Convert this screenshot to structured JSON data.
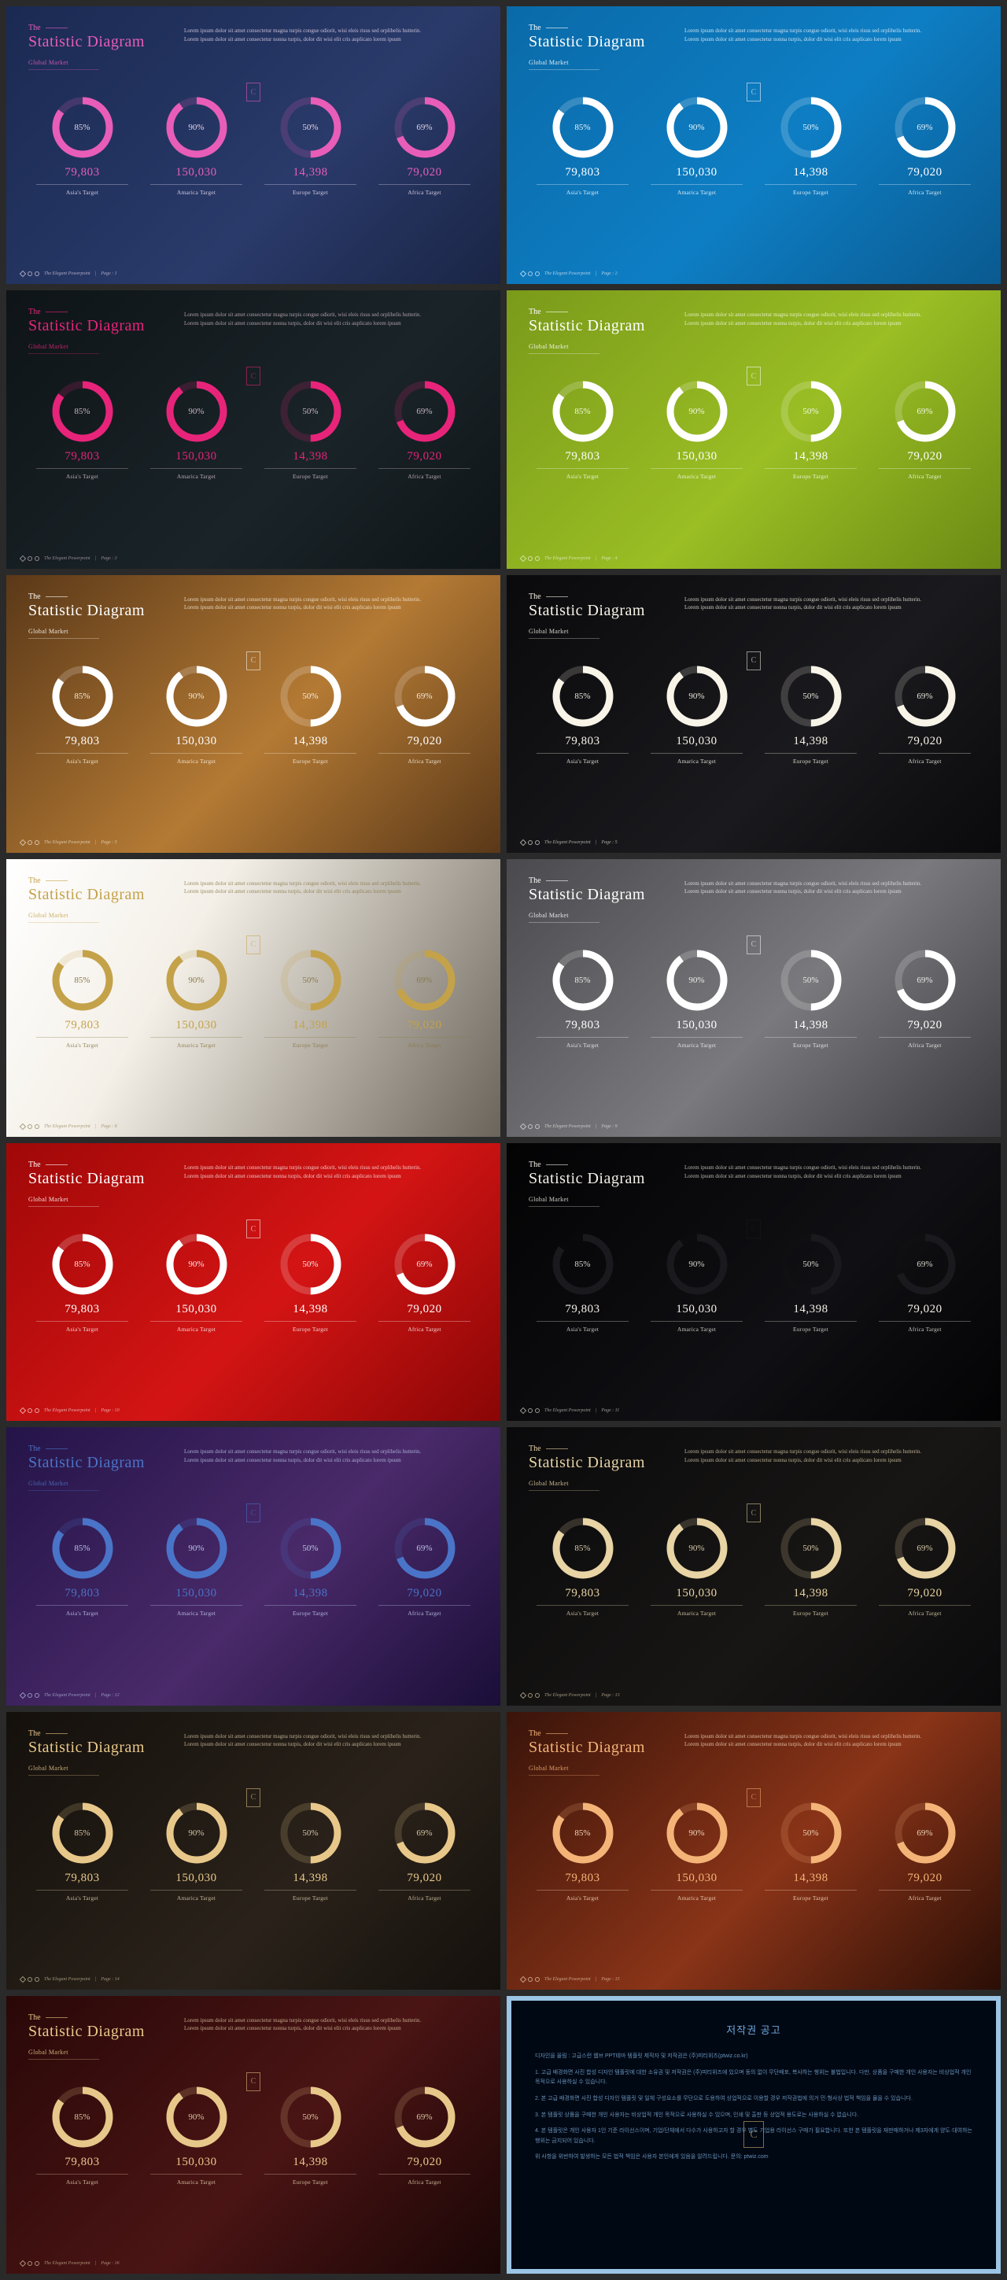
{
  "common": {
    "the": "The",
    "title": "Statistic Diagram",
    "subtitle": "Global Market",
    "desc": "Lorem ipsum dolor sit amet consectetur magna turpis congue odiorit, wisi eleis risus sed orplihelis hutterin. Lorem ipsum dolor sit amet consectetur nonna turpis, dolor dit wisi elit cris auplicato lorem ipsum",
    "footer_text": "The Elegant Powerpoint",
    "footer_page_label": "Page",
    "badge_letter": "C",
    "stats": [
      {
        "pct": 85,
        "pct_label": "85%",
        "value": "79,803",
        "label": "Asia's Target"
      },
      {
        "pct": 90,
        "pct_label": "90%",
        "value": "150,030",
        "label": "Amarica Target"
      },
      {
        "pct": 50,
        "pct_label": "50%",
        "value": "14,398",
        "label": "Europe Target"
      },
      {
        "pct": 69,
        "pct_label": "69%",
        "value": "79,020",
        "label": "Africa Target"
      }
    ],
    "donut": {
      "stroke_width": 9,
      "radius": 34,
      "track_opacity": 0.18
    }
  },
  "slides": [
    {
      "page": "1",
      "bg": "linear-gradient(135deg,#1a2a52 0%,#2a3a6a 60%,#1a2545 100%)",
      "title_color": "#e85db8",
      "ring_color": "#e85db8",
      "text_color": "#e0d4e8"
    },
    {
      "page": "2",
      "bg": "linear-gradient(135deg,#0a6aa8 0%,#0e7ec4 55%,#0a5a90 100%)",
      "title_color": "#ffffff",
      "ring_color": "#ffffff",
      "text_color": "#eaf4fb"
    },
    {
      "page": "3",
      "bg": "linear-gradient(135deg,#0e1418 0%,#1a2428 60%,#0e1418 100%)",
      "title_color": "#e8247a",
      "ring_color": "#e8247a",
      "text_color": "#c8b4c0"
    },
    {
      "page": "4",
      "bg": "linear-gradient(135deg,#7a9a1a 0%,#9abe24 55%,#6a8a14 100%)",
      "title_color": "#ffffff",
      "ring_color": "#ffffff",
      "text_color": "#f2f8e0"
    },
    {
      "page": "5",
      "bg": "linear-gradient(135deg,#5a3818 0%,#b47a34 55%,#5a3818 100%)",
      "title_color": "#ffffff",
      "ring_color": "#ffffff",
      "text_color": "#f4ead8"
    },
    {
      "page": "5",
      "bg": "linear-gradient(135deg,#0a0a0c 0%,#1a1a1e 60%,#0a0a0c 100%)",
      "title_color": "#f8f4e8",
      "ring_color": "#f8f4e8",
      "text_color": "#e8e4d8"
    },
    {
      "page": "8",
      "bg": "linear-gradient(120deg,#ffffff 0%,#f4f0e8 35%,#aaa49a 70%,#6a645a 100%)",
      "title_color": "#c4a24a",
      "ring_color": "#c4a24a",
      "text_color": "#8a7a4a"
    },
    {
      "page": "9",
      "bg": "linear-gradient(135deg,#4a4a4e 0%,#7a7a7e 55%,#3a3a3e 100%)",
      "title_color": "#ffffff",
      "ring_color": "#ffffff",
      "text_color": "#eaeaea"
    },
    {
      "page": "10",
      "bg": "linear-gradient(135deg,#a00808 0%,#d41414 55%,#8a0606 100%)",
      "title_color": "#ffffff",
      "ring_color": "#ffffff",
      "text_color": "#f8e4e4"
    },
    {
      "page": "11",
      "bg": "linear-gradient(135deg,#030304 0%,#101014 60%,#030304 100%)",
      "title_color": "#f4f0e8",
      "ring_color": "#1a1a1e",
      "text_color": "#d8d4ca",
      "ring_track_opacity": 0.06
    },
    {
      "page": "12",
      "bg": "linear-gradient(135deg,#241448 0%,#4a2a6a 55%,#1a0e38 100%)",
      "title_color": "#4a74c8",
      "ring_color": "#4a74c8",
      "text_color": "#b8c4e4"
    },
    {
      "page": "13",
      "bg": "linear-gradient(135deg,#0a0a0c 0%,#181614 60%,#0a0a0c 100%)",
      "title_color": "#e8d4a4",
      "ring_color": "#e8d4a4",
      "text_color": "#d8caa8"
    },
    {
      "page": "14",
      "bg": "linear-gradient(135deg,#14100c 0%,#2a221a 60%,#14100c 100%)",
      "title_color": "#e8c88a",
      "ring_color": "#e8c88a",
      "text_color": "#d4c4a4"
    },
    {
      "page": "15",
      "bg": "linear-gradient(135deg,#3a140a 0%,#8a3418 55%,#2a0e06 100%)",
      "title_color": "#f4b478",
      "ring_color": "#f4b478",
      "text_color": "#f0d4b8"
    },
    {
      "page": "16",
      "bg": "linear-gradient(135deg,#2a0808 0%,#4a1414 55%,#1a0606 100%)",
      "title_color": "#e8c88a",
      "ring_color": "#e8c88a",
      "text_color": "#d8c4a0"
    }
  ],
  "copyright": {
    "title": "저작권 공고",
    "badge_letter": "C",
    "paragraphs": [
      "디자인을 올림 : 고급스런 웹브 PPT테마 템플릿 제작자 및 저작권은 (주)피티위즈(ptwiz.co.kr)",
      "1. 고급 배경화면 사진 합성 디자인 템플릿에 대한 소유권 및 저작권은 (주)피티위즈에 있으며 동의 없이 무단배포, 복사하는 행위는 불법입니다. 다만, 상품을 구매한 개인 사용자는 비상업적 개인 목적으로 사용하실 수 있습니다.",
      "2. 본 고급 배경화면 사진 합성 디자인 템플릿 및 일체 구성요소를 무단으로 도용하여 상업적으로 이용할 경우 저작권법에 의거 민·형사상 법적 책임을 물을 수 있습니다.",
      "3. 본 템플릿 상품을 구매한 개인 사용자는 비상업적 개인 목적으로 사용하실 수 있으며, 인쇄 및 출판 등 상업적 용도로는 사용하실 수 없습니다.",
      "4. 본 템플릿은 개인 사용자 1인 기준 라이선스이며, 기업/단체에서 다수가 사용하고자 할 경우 별도 기업용 라이선스 구매가 필요합니다. 또한 본 템플릿을 재판매하거나 제3자에게 양도·대여하는 행위는 금지되어 있습니다.",
      "위 사항을 위반하여 발생하는 모든 법적 책임은 사용자 본인에게 있음을 알려드립니다. 문의: ptwiz.com"
    ]
  }
}
